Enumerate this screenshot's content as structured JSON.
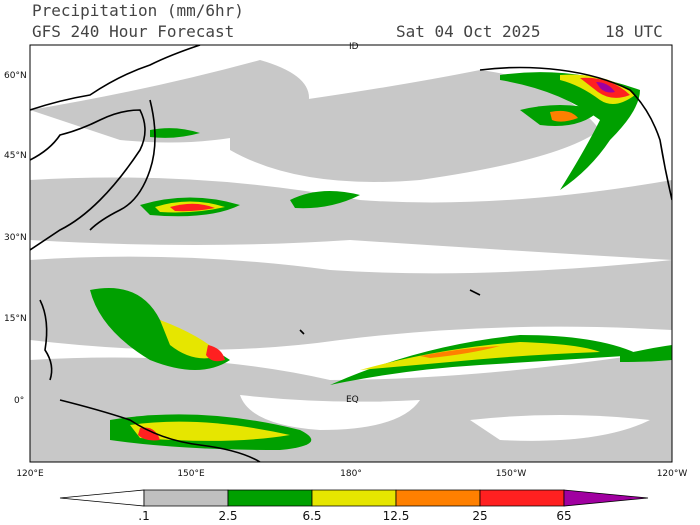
{
  "header": {
    "title": "Precipitation (mm/6hr)",
    "subtitle": "GFS 240 Hour Forecast",
    "date": "Sat 04 Oct 2025",
    "time": "18 UTC"
  },
  "map": {
    "lat_labels": [
      "60°N",
      "45°N",
      "30°N",
      "15°N",
      "0°"
    ],
    "lon_labels": [
      "120°E",
      "150°E",
      "180°",
      "150°W",
      "120°W"
    ],
    "annotations": [
      "ID",
      "EQ"
    ]
  },
  "colorbar": {
    "labels": [
      ".1",
      "2.5",
      "6.5",
      "12.5",
      "25",
      "65"
    ],
    "colors": [
      "#ffffff",
      "#c0c0c0",
      "#00a000",
      "#e6e600",
      "#ff8000",
      "#ff2020",
      "#a000a0"
    ]
  }
}
